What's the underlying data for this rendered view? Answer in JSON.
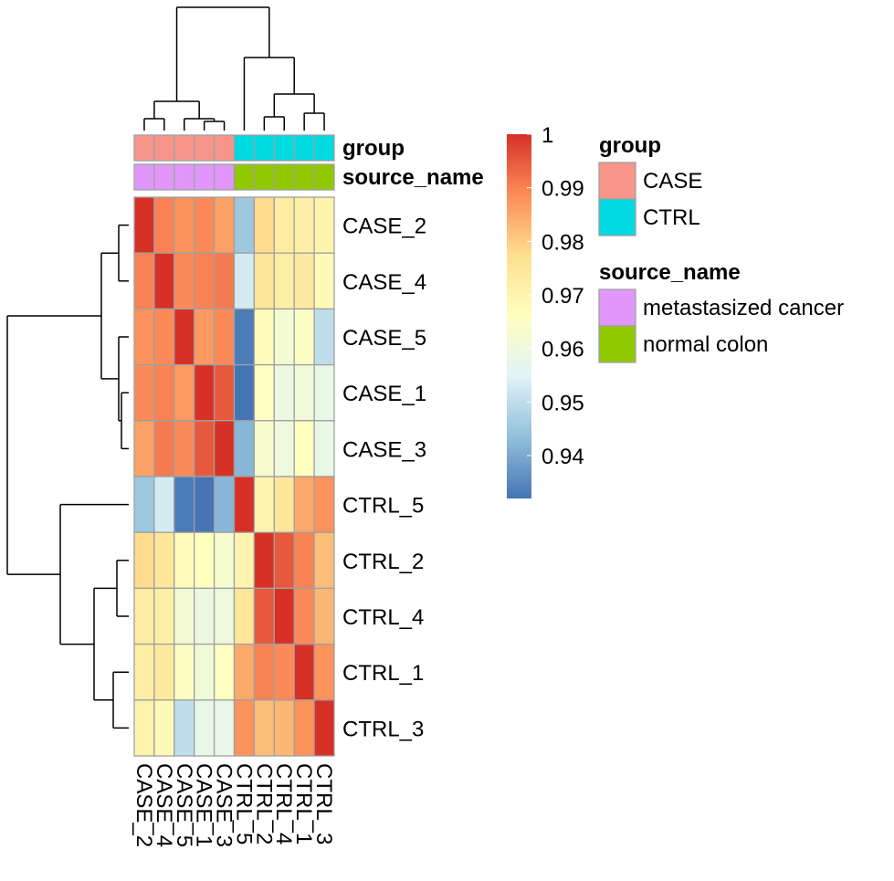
{
  "chart_data": {
    "type": "heatmap",
    "rows": [
      "CASE_2",
      "CASE_4",
      "CASE_5",
      "CASE_1",
      "CASE_3",
      "CTRL_5",
      "CTRL_2",
      "CTRL_4",
      "CTRL_1",
      "CTRL_3"
    ],
    "columns": [
      "CASE_2",
      "CASE_4",
      "CASE_5",
      "CASE_1",
      "CASE_3",
      "CTRL_5",
      "CTRL_2",
      "CTRL_4",
      "CTRL_1",
      "CTRL_3"
    ],
    "values": [
      [
        1.0,
        0.99,
        0.988,
        0.989,
        0.986,
        0.945,
        0.978,
        0.973,
        0.972,
        0.97
      ],
      [
        0.99,
        1.0,
        0.989,
        0.99,
        0.991,
        0.953,
        0.975,
        0.972,
        0.974,
        0.968
      ],
      [
        0.988,
        0.989,
        1.0,
        0.987,
        0.989,
        0.933,
        0.967,
        0.962,
        0.965,
        0.95
      ],
      [
        0.989,
        0.99,
        0.987,
        1.0,
        0.995,
        0.932,
        0.966,
        0.959,
        0.961,
        0.958
      ],
      [
        0.986,
        0.991,
        0.989,
        0.995,
        1.0,
        0.942,
        0.963,
        0.96,
        0.966,
        0.958
      ],
      [
        0.945,
        0.953,
        0.933,
        0.932,
        0.942,
        1.0,
        0.97,
        0.975,
        0.985,
        0.988
      ],
      [
        0.978,
        0.975,
        0.967,
        0.966,
        0.963,
        0.97,
        1.0,
        0.995,
        0.99,
        0.982
      ],
      [
        0.973,
        0.972,
        0.962,
        0.959,
        0.96,
        0.975,
        0.995,
        1.0,
        0.989,
        0.983
      ],
      [
        0.972,
        0.974,
        0.965,
        0.961,
        0.966,
        0.985,
        0.99,
        0.989,
        1.0,
        0.988
      ],
      [
        0.97,
        0.968,
        0.95,
        0.958,
        0.958,
        0.988,
        0.982,
        0.983,
        0.988,
        1.0
      ]
    ],
    "color_scale": {
      "min": 0.932,
      "max": 1.0,
      "stops": [
        "#4575B4",
        "#91BFDB",
        "#E0F3F8",
        "#FFFFBF",
        "#FEE090",
        "#FC8D59",
        "#D73027"
      ],
      "ticks": [
        1,
        0.99,
        0.98,
        0.97,
        0.96,
        0.95,
        0.94
      ]
    },
    "annotations": {
      "tracks": [
        {
          "name": "group",
          "values": [
            "CASE",
            "CASE",
            "CASE",
            "CASE",
            "CASE",
            "CTRL",
            "CTRL",
            "CTRL",
            "CTRL",
            "CTRL"
          ]
        },
        {
          "name": "source_name",
          "values": [
            "metastasized cancer",
            "metastasized cancer",
            "metastasized cancer",
            "metastasized cancer",
            "metastasized cancer",
            "normal colon",
            "normal colon",
            "normal colon",
            "normal colon",
            "normal colon"
          ]
        }
      ],
      "legend": [
        {
          "title": "group",
          "items": [
            {
              "label": "CASE",
              "color": "#F8958B"
            },
            {
              "label": "CTRL",
              "color": "#00DAE1"
            }
          ]
        },
        {
          "title": "source_name",
          "items": [
            {
              "label": "metastasized cancer",
              "color": "#E197FA"
            },
            {
              "label": "normal colon",
              "color": "#91C900"
            }
          ]
        }
      ]
    },
    "dendrograms": {
      "rows": "left",
      "columns": "top",
      "merges_note": "(CASE_2,CASE_4),((CASE_5,(CASE_1,CASE_3))) | (CTRL_5,((CTRL_2,CTRL_4),(CTRL_1,CTRL_3)))"
    },
    "grid_border_color": "#A0A0A0"
  }
}
